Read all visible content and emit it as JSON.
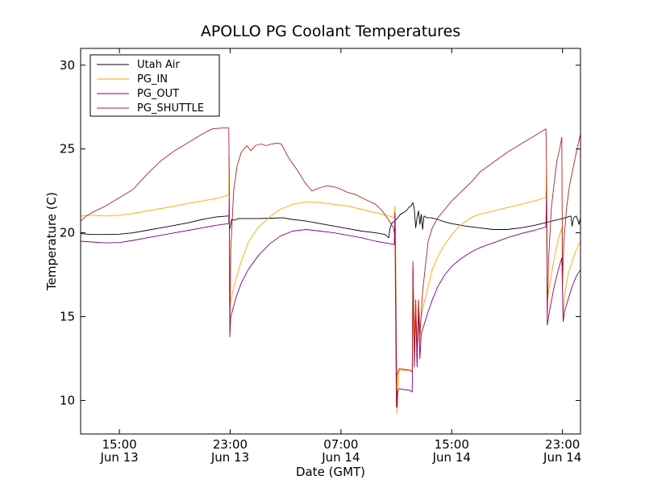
{
  "chart_data": {
    "type": "line",
    "title": "APOLLO PG Coolant Temperatures",
    "xlabel": "Date (GMT)",
    "ylabel": "Temperature (C)",
    "x_unit": "hours since Jun 13 00:00 GMT",
    "xlim": [
      12.2,
      48.3
    ],
    "ylim": [
      8,
      31
    ],
    "grid": false,
    "legend_position": "top-left",
    "x_ticks": [
      {
        "value": 15,
        "line1": "15:00",
        "line2": "Jun 13"
      },
      {
        "value": 23,
        "line1": "23:00",
        "line2": "Jun 13"
      },
      {
        "value": 31,
        "line1": "07:00",
        "line2": "Jun 14"
      },
      {
        "value": 39,
        "line1": "15:00",
        "line2": "Jun 14"
      },
      {
        "value": 47,
        "line1": "23:00",
        "line2": "Jun 14"
      }
    ],
    "y_ticks": [
      10,
      15,
      20,
      25,
      30
    ],
    "series": [
      {
        "name": "Utah Air",
        "color": "#000000",
        "points": [
          [
            12.2,
            19.95
          ],
          [
            13,
            19.9
          ],
          [
            14,
            19.9
          ],
          [
            15,
            19.92
          ],
          [
            16,
            20.0
          ],
          [
            17,
            20.15
          ],
          [
            18,
            20.3
          ],
          [
            19,
            20.45
          ],
          [
            20,
            20.6
          ],
          [
            21,
            20.8
          ],
          [
            22,
            20.95
          ],
          [
            22.8,
            21.0
          ],
          [
            22.9,
            21.0
          ],
          [
            22.96,
            20.2
          ],
          [
            23.02,
            20.4
          ],
          [
            23.1,
            20.8
          ],
          [
            23.3,
            20.75
          ],
          [
            23.6,
            20.85
          ],
          [
            24,
            20.85
          ],
          [
            25,
            20.85
          ],
          [
            26,
            20.87
          ],
          [
            26.8,
            20.9
          ],
          [
            27.5,
            20.8
          ],
          [
            28.5,
            20.7
          ],
          [
            29.5,
            20.55
          ],
          [
            30.5,
            20.4
          ],
          [
            31.5,
            20.25
          ],
          [
            32.5,
            20.1
          ],
          [
            33.5,
            20.0
          ],
          [
            34.2,
            19.9
          ],
          [
            34.45,
            19.7
          ],
          [
            34.55,
            20.3
          ],
          [
            34.7,
            20.6
          ],
          [
            34.9,
            20.7
          ],
          [
            35.1,
            20.9
          ],
          [
            35.3,
            21.1
          ],
          [
            35.5,
            21.2
          ],
          [
            35.7,
            21.3
          ],
          [
            35.9,
            21.5
          ],
          [
            36.05,
            21.6
          ],
          [
            36.2,
            21.8
          ],
          [
            36.3,
            21.4
          ],
          [
            36.4,
            20.3
          ],
          [
            36.5,
            20.9
          ],
          [
            36.6,
            21.3
          ],
          [
            36.7,
            20.5
          ],
          [
            36.8,
            21.1
          ],
          [
            36.9,
            20.2
          ],
          [
            37.0,
            21.0
          ],
          [
            37.2,
            20.9
          ],
          [
            37.5,
            20.9
          ],
          [
            38,
            20.8
          ],
          [
            38.5,
            20.65
          ],
          [
            39,
            20.55
          ],
          [
            40,
            20.4
          ],
          [
            41,
            20.3
          ],
          [
            42,
            20.2
          ],
          [
            43,
            20.2
          ],
          [
            44,
            20.3
          ],
          [
            45,
            20.45
          ],
          [
            46,
            20.65
          ],
          [
            47,
            20.85
          ],
          [
            47.6,
            21.0
          ],
          [
            47.7,
            20.4
          ],
          [
            47.8,
            20.9
          ],
          [
            48.0,
            21.0
          ],
          [
            48.2,
            20.5
          ],
          [
            48.3,
            20.95
          ]
        ]
      },
      {
        "name": "PG_IN",
        "color": "#ffa500",
        "points": [
          [
            12.2,
            21.0
          ],
          [
            13,
            21.05
          ],
          [
            14,
            21.0
          ],
          [
            15,
            21.05
          ],
          [
            16,
            21.15
          ],
          [
            17,
            21.3
          ],
          [
            18,
            21.45
          ],
          [
            19,
            21.6
          ],
          [
            20,
            21.75
          ],
          [
            21,
            21.9
          ],
          [
            22,
            22.05
          ],
          [
            22.9,
            22.25
          ],
          [
            22.93,
            24.5
          ],
          [
            22.97,
            15.0
          ],
          [
            23.05,
            16.0
          ],
          [
            23.4,
            17.2
          ],
          [
            23.8,
            18.3
          ],
          [
            24.3,
            19.4
          ],
          [
            25,
            20.3
          ],
          [
            25.8,
            20.9
          ],
          [
            26.6,
            21.4
          ],
          [
            27.5,
            21.7
          ],
          [
            28.5,
            21.85
          ],
          [
            29.5,
            21.8
          ],
          [
            30.5,
            21.7
          ],
          [
            31.5,
            21.6
          ],
          [
            32.5,
            21.4
          ],
          [
            33.5,
            21.2
          ],
          [
            34.5,
            21.0
          ],
          [
            34.85,
            20.9
          ],
          [
            34.9,
            21.6
          ],
          [
            34.95,
            19.5
          ],
          [
            35.0,
            14.0
          ],
          [
            35.05,
            9.2
          ],
          [
            35.1,
            10.2
          ],
          [
            35.2,
            11.8
          ],
          [
            36,
            11.8
          ],
          [
            36.15,
            11.7
          ],
          [
            36.2,
            17.5
          ],
          [
            36.3,
            13.5
          ],
          [
            36.4,
            16.0
          ],
          [
            36.5,
            12.5
          ],
          [
            36.6,
            16.0
          ],
          [
            36.7,
            13.5
          ],
          [
            36.8,
            15.0
          ],
          [
            37.0,
            15.8
          ],
          [
            37.3,
            16.8
          ],
          [
            37.6,
            17.8
          ],
          [
            38,
            18.6
          ],
          [
            38.5,
            19.3
          ],
          [
            39,
            19.9
          ],
          [
            39.5,
            20.35
          ],
          [
            40,
            20.7
          ],
          [
            40.5,
            20.95
          ],
          [
            41,
            21.1
          ],
          [
            42,
            21.3
          ],
          [
            43,
            21.5
          ],
          [
            44,
            21.7
          ],
          [
            45,
            21.9
          ],
          [
            45.8,
            22.1
          ],
          [
            45.85,
            23.8
          ],
          [
            45.9,
            16.0
          ],
          [
            46.1,
            17.0
          ],
          [
            46.4,
            18.5
          ],
          [
            46.7,
            19.6
          ],
          [
            46.95,
            20.3
          ],
          [
            47.05,
            15.0
          ],
          [
            47.15,
            16.3
          ],
          [
            47.4,
            17.5
          ],
          [
            47.7,
            18.3
          ],
          [
            48,
            19.0
          ],
          [
            48.3,
            19.5
          ]
        ]
      },
      {
        "name": "PG_OUT",
        "color": "#800080",
        "points": [
          [
            12.2,
            19.5
          ],
          [
            13,
            19.45
          ],
          [
            14,
            19.4
          ],
          [
            15,
            19.42
          ],
          [
            16,
            19.55
          ],
          [
            17,
            19.7
          ],
          [
            18,
            19.85
          ],
          [
            19,
            20.0
          ],
          [
            20,
            20.15
          ],
          [
            21,
            20.3
          ],
          [
            22,
            20.45
          ],
          [
            22.9,
            20.55
          ],
          [
            22.93,
            22.0
          ],
          [
            22.97,
            13.8
          ],
          [
            23.05,
            15.0
          ],
          [
            23.4,
            16.1
          ],
          [
            23.8,
            17.0
          ],
          [
            24.3,
            17.8
          ],
          [
            25,
            18.6
          ],
          [
            25.8,
            19.3
          ],
          [
            26.6,
            19.8
          ],
          [
            27.5,
            20.1
          ],
          [
            28.5,
            20.2
          ],
          [
            29.5,
            20.1
          ],
          [
            30.5,
            20.0
          ],
          [
            31.5,
            19.85
          ],
          [
            32.5,
            19.7
          ],
          [
            33.5,
            19.5
          ],
          [
            34.5,
            19.35
          ],
          [
            34.85,
            19.3
          ],
          [
            34.9,
            21.2
          ],
          [
            34.95,
            17.0
          ],
          [
            35.0,
            12.5
          ],
          [
            35.05,
            9.6
          ],
          [
            35.1,
            10.6
          ],
          [
            35.2,
            10.7
          ],
          [
            36,
            10.6
          ],
          [
            36.15,
            10.5
          ],
          [
            36.2,
            18.0
          ],
          [
            36.3,
            12.0
          ],
          [
            36.4,
            15.5
          ],
          [
            36.5,
            12.0
          ],
          [
            36.6,
            15.5
          ],
          [
            36.7,
            12.5
          ],
          [
            36.8,
            14.0
          ],
          [
            37.0,
            14.5
          ],
          [
            37.3,
            15.3
          ],
          [
            37.6,
            16.0
          ],
          [
            38,
            16.8
          ],
          [
            38.5,
            17.5
          ],
          [
            39,
            18.0
          ],
          [
            39.5,
            18.35
          ],
          [
            40,
            18.65
          ],
          [
            40.5,
            18.9
          ],
          [
            41,
            19.1
          ],
          [
            42,
            19.4
          ],
          [
            43,
            19.7
          ],
          [
            44,
            19.95
          ],
          [
            45,
            20.15
          ],
          [
            45.8,
            20.35
          ],
          [
            45.85,
            22.5
          ],
          [
            45.9,
            14.5
          ],
          [
            46.1,
            15.5
          ],
          [
            46.4,
            16.8
          ],
          [
            46.7,
            17.8
          ],
          [
            46.95,
            18.5
          ],
          [
            47.05,
            14.7
          ],
          [
            47.15,
            15.3
          ],
          [
            47.4,
            16.0
          ],
          [
            47.7,
            16.8
          ],
          [
            48,
            17.4
          ],
          [
            48.3,
            17.8
          ]
        ]
      },
      {
        "name": "PG_SHUTTLE",
        "color": "#b22222",
        "points": [
          [
            12.2,
            20.7
          ],
          [
            12.6,
            21.0
          ],
          [
            13,
            21.2
          ],
          [
            14,
            21.6
          ],
          [
            15,
            22.1
          ],
          [
            16,
            22.6
          ],
          [
            17,
            23.5
          ],
          [
            18,
            24.3
          ],
          [
            19,
            24.9
          ],
          [
            20,
            25.4
          ],
          [
            21,
            25.9
          ],
          [
            21.7,
            26.2
          ],
          [
            22.4,
            26.25
          ],
          [
            22.9,
            26.25
          ],
          [
            22.93,
            23.0
          ],
          [
            22.97,
            14.0
          ],
          [
            23.05,
            19.0
          ],
          [
            23.25,
            22.5
          ],
          [
            23.5,
            24.0
          ],
          [
            23.8,
            24.8
          ],
          [
            24.2,
            25.2
          ],
          [
            24.5,
            24.9
          ],
          [
            24.8,
            25.2
          ],
          [
            25.2,
            25.3
          ],
          [
            25.6,
            25.2
          ],
          [
            26,
            25.3
          ],
          [
            26.4,
            25.35
          ],
          [
            26.7,
            25.3
          ],
          [
            27.2,
            24.5
          ],
          [
            27.8,
            23.8
          ],
          [
            28.4,
            23.0
          ],
          [
            28.9,
            22.5
          ],
          [
            29.5,
            22.7
          ],
          [
            30.0,
            22.8
          ],
          [
            30.5,
            22.75
          ],
          [
            31,
            22.6
          ],
          [
            31.5,
            22.4
          ],
          [
            32,
            22.3
          ],
          [
            32.5,
            22.1
          ],
          [
            33,
            21.9
          ],
          [
            33.5,
            21.7
          ],
          [
            34,
            21.3
          ],
          [
            34.5,
            20.7
          ],
          [
            34.8,
            20.3
          ],
          [
            34.85,
            20.0
          ],
          [
            34.9,
            19.7
          ],
          [
            34.95,
            15.0
          ],
          [
            35.0,
            9.6
          ],
          [
            35.05,
            11.5
          ],
          [
            35.2,
            11.9
          ],
          [
            36,
            11.8
          ],
          [
            36.15,
            11.7
          ],
          [
            36.2,
            18.3
          ],
          [
            36.3,
            12.5
          ],
          [
            36.4,
            16.0
          ],
          [
            36.5,
            12.8
          ],
          [
            36.6,
            16.0
          ],
          [
            36.7,
            14.0
          ],
          [
            36.8,
            15.2
          ],
          [
            36.9,
            16.5
          ],
          [
            37.1,
            18.0
          ],
          [
            37.3,
            19.5
          ],
          [
            37.6,
            20.3
          ],
          [
            38,
            20.9
          ],
          [
            38.5,
            21.4
          ],
          [
            39,
            21.9
          ],
          [
            39.5,
            22.3
          ],
          [
            40,
            22.7
          ],
          [
            40.5,
            23.1
          ],
          [
            41,
            23.6
          ],
          [
            42,
            24.2
          ],
          [
            43,
            24.8
          ],
          [
            44,
            25.3
          ],
          [
            45,
            25.8
          ],
          [
            45.8,
            26.2
          ],
          [
            45.85,
            24.0
          ],
          [
            45.9,
            15.0
          ],
          [
            46.0,
            18.5
          ],
          [
            46.2,
            21.5
          ],
          [
            46.4,
            23.0
          ],
          [
            46.6,
            24.3
          ],
          [
            46.8,
            25.0
          ],
          [
            46.95,
            25.7
          ],
          [
            47.0,
            17.0
          ],
          [
            47.1,
            19.5
          ],
          [
            47.3,
            21.5
          ],
          [
            47.5,
            22.8
          ],
          [
            47.8,
            24.0
          ],
          [
            48,
            24.8
          ],
          [
            48.3,
            25.9
          ]
        ]
      }
    ]
  }
}
